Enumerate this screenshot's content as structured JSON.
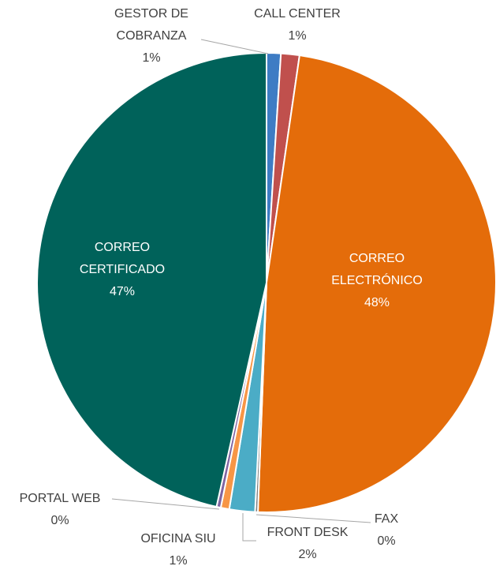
{
  "chart_data": {
    "type": "pie",
    "categories": [
      "GESTOR DE COBRANZA",
      "CALL CENTER",
      "CORREO ELECTRÓNICO",
      "FAX",
      "FRONT DESK",
      "OFICINA SIU",
      "PORTAL WEB",
      "CORREO CERTIFICADO"
    ],
    "values": [
      1.0,
      1.3,
      48.3,
      0.2,
      1.8,
      0.6,
      0.3,
      46.5
    ],
    "value_labels": [
      "1%",
      "1%",
      "48%",
      "0%",
      "2%",
      "1%",
      "0%",
      "47%"
    ],
    "colors": [
      "#3e7cc4",
      "#c0504d",
      "#e46c0a",
      "#7f7f7f",
      "#4bacc6",
      "#f79646",
      "#8064a2",
      "#00625a"
    ]
  }
}
